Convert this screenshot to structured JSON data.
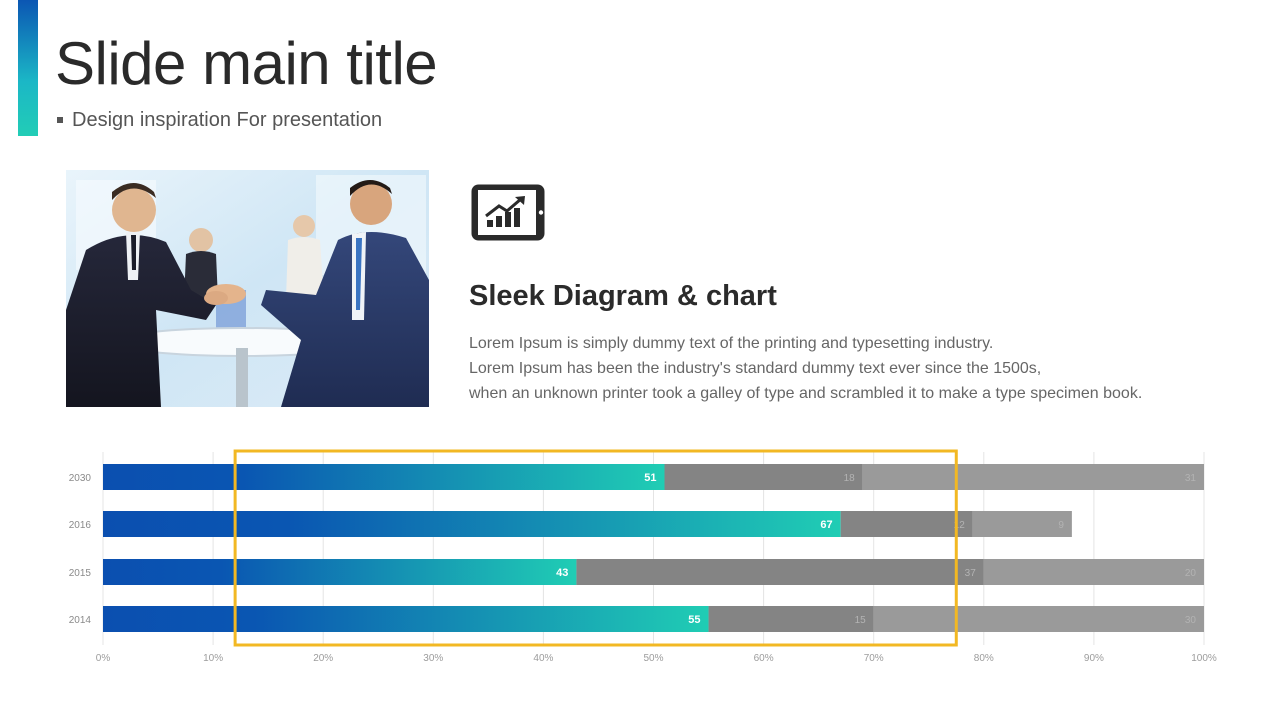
{
  "slide": {
    "title": "Slide main title",
    "subtitle": "Design inspiration For presentation"
  },
  "feature": {
    "heading": "Sleek Diagram & chart",
    "icon": "tablet-growth-chart-icon",
    "paragraph_lines": [
      "Lorem Ipsum is simply dummy text of the printing and typesetting industry.",
      "Lorem Ipsum has been the industry's standard dummy  text ever since the 1500s,",
      "when an unknown printer took a galley of type and scrambled it to make a type specimen book."
    ]
  },
  "colors": {
    "accent_blue": "#0b56b3",
    "accent_teal": "#22cdb6",
    "gray_dark": "#848484",
    "gray_mid": "#8d8d8d",
    "gray_light": "#9a9a9a",
    "highlight": "#f2b823"
  },
  "chart_data": {
    "type": "bar",
    "orientation": "horizontal",
    "stacked": true,
    "percent": true,
    "categories": [
      "2030",
      "2016",
      "2015",
      "2014"
    ],
    "series": [
      {
        "values": [
          51,
          67,
          43,
          55
        ],
        "color": "gradient-blue-teal",
        "label_style": "bold-white"
      },
      {
        "values": [
          18,
          12,
          37,
          15
        ],
        "color": "#848484",
        "label_style": "faint"
      },
      {
        "values": [
          31,
          9,
          20,
          30
        ],
        "color": "#9a9a9a",
        "label_style": "faint"
      }
    ],
    "segment_labels": [
      [
        "51",
        "18",
        "31"
      ],
      [
        "67",
        "12",
        "9"
      ],
      [
        "43",
        "37",
        "20"
      ],
      [
        "55",
        "15",
        "30"
      ]
    ],
    "x_ticks": [
      "0%",
      "10%",
      "20%",
      "30%",
      "40%",
      "50%",
      "60%",
      "70%",
      "80%",
      "90%",
      "100%"
    ],
    "xlim": [
      0,
      100
    ],
    "grid": true,
    "highlight_range": [
      12,
      77.5
    ]
  }
}
